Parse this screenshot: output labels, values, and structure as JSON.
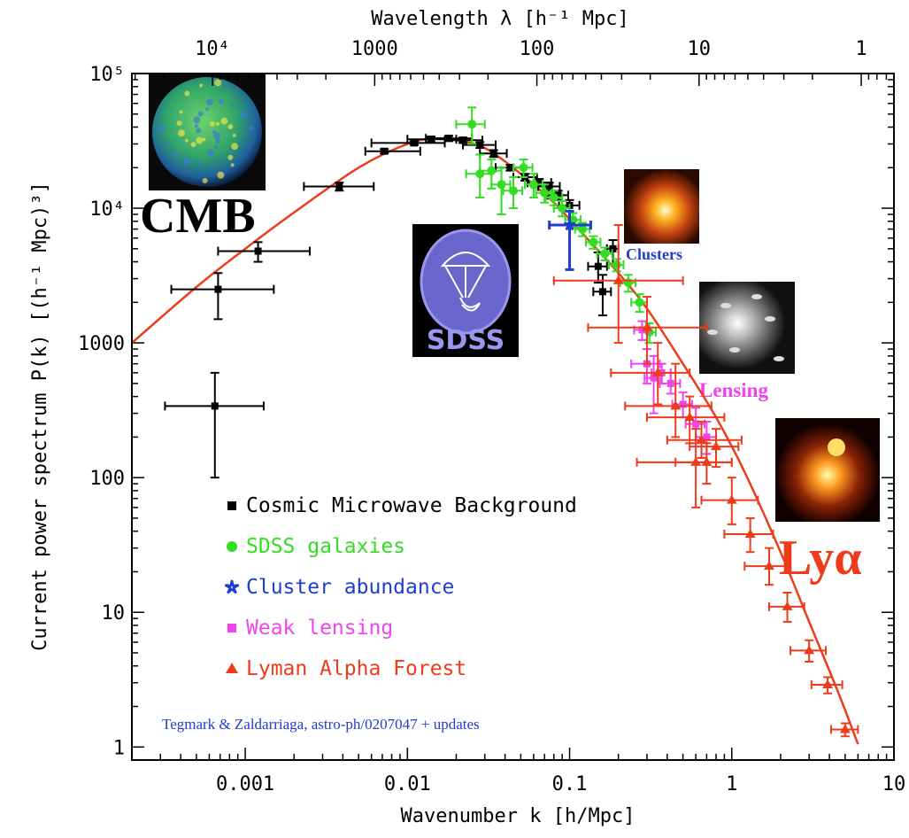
{
  "colors": {
    "cmb": "#000000",
    "sdss": "#33dd22",
    "clusters": "#1e3ed0",
    "lensing": "#ee44ee",
    "lya": "#ee3b1b",
    "model": "#ee3b1b"
  },
  "icons": [
    "square-marker-icon",
    "circle-marker-icon",
    "star-marker-icon",
    "square-marker-icon",
    "triangle-marker-icon"
  ],
  "photos": {
    "cmb": {
      "label": "CMB",
      "icon": "cmb-sky-map-photo"
    },
    "sdss": {
      "label": "SDSS",
      "icon": "sdss-telescope-logo"
    },
    "clusters": {
      "label": "Clusters",
      "icon": "galaxy-cluster-photo"
    },
    "lensing": {
      "label": "Lensing",
      "icon": "gravitational-lensing-photo"
    },
    "lya": {
      "label": "Lyα",
      "icon": "lyman-alpha-quasar-photo"
    }
  },
  "citation": "Tegmark & Zaldarriaga, astro-ph/0207047 + updates",
  "chart_data": {
    "type": "scatter",
    "xlabel": "Wavenumber k [h/Mpc]",
    "ylabel": "Current power spectrum P(k) [(h⁻¹ Mpc)³]",
    "top_xlabel": "Wavelength λ [h⁻¹ Mpc]",
    "xscale": "log",
    "yscale": "log",
    "xlim": [
      0.0002,
      10
    ],
    "ylim": [
      0.8,
      100000
    ],
    "x_ticks": [
      {
        "value": 0.001,
        "label": "0.001"
      },
      {
        "value": 0.01,
        "label": "0.01"
      },
      {
        "value": 0.1,
        "label": "0.1"
      },
      {
        "value": 1,
        "label": "1"
      },
      {
        "value": 10,
        "label": "10"
      }
    ],
    "y_ticks": [
      {
        "value": 1,
        "label": "1"
      },
      {
        "value": 10,
        "label": "10"
      },
      {
        "value": 100,
        "label": "100"
      },
      {
        "value": 1000,
        "label": "1000"
      },
      {
        "value": 10000,
        "label": "10⁴"
      },
      {
        "value": 100000,
        "label": "10⁵"
      }
    ],
    "top_ticks": [
      {
        "value": 0.000628,
        "label": "10⁴"
      },
      {
        "value": 0.00628,
        "label": "1000"
      },
      {
        "value": 0.0628,
        "label": "100"
      },
      {
        "value": 0.628,
        "label": "10"
      },
      {
        "value": 6.28,
        "label": "1"
      }
    ],
    "legend_position": "lower-left",
    "series": [
      {
        "name": "Cosmic Microwave Background",
        "marker": "square",
        "color": "#000000",
        "points": [
          {
            "x": 0.00065,
            "y": 340,
            "xlo": 0.00032,
            "xhi": 0.0013,
            "ylo": 100,
            "yhi": 600
          },
          {
            "x": 0.00068,
            "y": 2500,
            "xlo": 0.00035,
            "xhi": 0.0015,
            "ylo": 1500,
            "yhi": 3300
          },
          {
            "x": 0.0012,
            "y": 4800,
            "xlo": 0.00068,
            "xhi": 0.0025,
            "ylo": 4000,
            "yhi": 5600
          },
          {
            "x": 0.0038,
            "y": 14500,
            "xlo": 0.0023,
            "xhi": 0.0062,
            "ylo": 13500,
            "yhi": 15500
          },
          {
            "x": 0.0072,
            "y": 26500,
            "xlo": 0.0055,
            "xhi": 0.012,
            "ylo": 25500,
            "yhi": 27500
          },
          {
            "x": 0.011,
            "y": 30500,
            "xlo": 0.006,
            "xhi": 0.017,
            "ylo": 29500,
            "yhi": 31500
          },
          {
            "x": 0.014,
            "y": 32500,
            "xlo": 0.01,
            "xhi": 0.02,
            "ylo": 31000,
            "yhi": 34000
          },
          {
            "x": 0.018,
            "y": 33000,
            "xlo": 0.013,
            "xhi": 0.025,
            "ylo": 31500,
            "yhi": 34500
          },
          {
            "x": 0.022,
            "y": 32000,
            "xlo": 0.017,
            "xhi": 0.029,
            "ylo": 30500,
            "yhi": 33500
          },
          {
            "x": 0.028,
            "y": 29500,
            "xlo": 0.022,
            "xhi": 0.035,
            "ylo": 28000,
            "yhi": 31000
          },
          {
            "x": 0.034,
            "y": 25500,
            "xlo": 0.028,
            "xhi": 0.041,
            "ylo": 24000,
            "yhi": 27000
          },
          {
            "x": 0.043,
            "y": 20000,
            "xlo": 0.035,
            "xhi": 0.052,
            "ylo": 19000,
            "yhi": 21000
          },
          {
            "x": 0.053,
            "y": 17000,
            "xlo": 0.045,
            "xhi": 0.063,
            "ylo": 16000,
            "yhi": 18000
          },
          {
            "x": 0.065,
            "y": 15500,
            "xlo": 0.055,
            "xhi": 0.077,
            "ylo": 14500,
            "yhi": 16500
          },
          {
            "x": 0.075,
            "y": 14500,
            "xlo": 0.064,
            "xhi": 0.087,
            "ylo": 13500,
            "yhi": 15500
          },
          {
            "x": 0.085,
            "y": 12500,
            "xlo": 0.073,
            "xhi": 0.098,
            "ylo": 11500,
            "yhi": 13500
          },
          {
            "x": 0.1,
            "y": 10500,
            "xlo": 0.086,
            "xhi": 0.115,
            "ylo": 9500,
            "yhi": 11500
          },
          {
            "x": 0.15,
            "y": 3700,
            "xlo": 0.13,
            "xhi": 0.17,
            "ylo": 2800,
            "yhi": 4700
          },
          {
            "x": 0.16,
            "y": 2400,
            "xlo": 0.14,
            "xhi": 0.18,
            "ylo": 1600,
            "yhi": 3200
          },
          {
            "x": 0.185,
            "y": 5000,
            "xlo": 0.17,
            "xhi": 0.2,
            "ylo": 3800,
            "yhi": 5800
          }
        ]
      },
      {
        "name": "SDSS galaxies",
        "marker": "circle",
        "color": "#33dd22",
        "points": [
          {
            "x": 0.025,
            "y": 42000,
            "xlo": 0.02,
            "xhi": 0.03,
            "ylo": 30000,
            "yhi": 56000
          },
          {
            "x": 0.028,
            "y": 18000,
            "xlo": 0.023,
            "xhi": 0.033,
            "ylo": 12000,
            "yhi": 25000
          },
          {
            "x": 0.033,
            "y": 19000,
            "xlo": 0.028,
            "xhi": 0.038,
            "ylo": 14000,
            "yhi": 23000
          },
          {
            "x": 0.038,
            "y": 15000,
            "xlo": 0.033,
            "xhi": 0.043,
            "ylo": 9000,
            "yhi": 20000
          },
          {
            "x": 0.045,
            "y": 13500,
            "xlo": 0.039,
            "xhi": 0.051,
            "ylo": 10000,
            "yhi": 17000
          },
          {
            "x": 0.052,
            "y": 20000,
            "xlo": 0.045,
            "xhi": 0.059,
            "ylo": 17000,
            "yhi": 23000
          },
          {
            "x": 0.06,
            "y": 15000,
            "xlo": 0.053,
            "xhi": 0.068,
            "ylo": 12000,
            "yhi": 18000
          },
          {
            "x": 0.07,
            "y": 13000,
            "xlo": 0.062,
            "xhi": 0.078,
            "ylo": 11000,
            "yhi": 15000
          },
          {
            "x": 0.08,
            "y": 12000,
            "xlo": 0.071,
            "xhi": 0.09,
            "ylo": 10500,
            "yhi": 13500
          },
          {
            "x": 0.09,
            "y": 10000,
            "xlo": 0.08,
            "xhi": 0.1,
            "ylo": 8700,
            "yhi": 11300
          },
          {
            "x": 0.105,
            "y": 8200,
            "xlo": 0.094,
            "xhi": 0.117,
            "ylo": 7200,
            "yhi": 9200
          },
          {
            "x": 0.12,
            "y": 7000,
            "xlo": 0.108,
            "xhi": 0.133,
            "ylo": 6200,
            "yhi": 7800
          },
          {
            "x": 0.14,
            "y": 5600,
            "xlo": 0.126,
            "xhi": 0.155,
            "ylo": 5000,
            "yhi": 6200
          },
          {
            "x": 0.165,
            "y": 4600,
            "xlo": 0.148,
            "xhi": 0.183,
            "ylo": 4100,
            "yhi": 5100
          },
          {
            "x": 0.195,
            "y": 3800,
            "xlo": 0.175,
            "xhi": 0.215,
            "ylo": 3400,
            "yhi": 4200
          },
          {
            "x": 0.23,
            "y": 2800,
            "xlo": 0.205,
            "xhi": 0.255,
            "ylo": 2400,
            "yhi": 3200
          },
          {
            "x": 0.27,
            "y": 2000,
            "xlo": 0.24,
            "xhi": 0.3,
            "ylo": 1700,
            "yhi": 2300
          },
          {
            "x": 0.31,
            "y": 1200,
            "xlo": 0.28,
            "xhi": 0.34,
            "ylo": 1000,
            "yhi": 1400
          }
        ]
      },
      {
        "name": "Cluster abundance",
        "marker": "star",
        "color": "#1e3ed0",
        "points": [
          {
            "x": 0.1,
            "y": 7500,
            "xlo": 0.075,
            "xhi": 0.135,
            "ylo": 3500,
            "yhi": 9500
          }
        ]
      },
      {
        "name": "Weak lensing",
        "marker": "square",
        "color": "#ee44ee",
        "points": [
          {
            "x": 0.28,
            "y": 1250,
            "xlo": 0.25,
            "xhi": 0.31,
            "ylo": 1050,
            "yhi": 1450
          },
          {
            "x": 0.3,
            "y": 700,
            "xlo": 0.24,
            "xhi": 0.36,
            "ylo": 500,
            "yhi": 900
          },
          {
            "x": 0.33,
            "y": 550,
            "xlo": 0.29,
            "xhi": 0.37,
            "ylo": 300,
            "yhi": 800
          },
          {
            "x": 0.37,
            "y": 600,
            "xlo": 0.32,
            "xhi": 0.42,
            "ylo": 500,
            "yhi": 700
          },
          {
            "x": 0.42,
            "y": 500,
            "xlo": 0.36,
            "xhi": 0.48,
            "ylo": 420,
            "yhi": 600
          },
          {
            "x": 0.5,
            "y": 350,
            "xlo": 0.43,
            "xhi": 0.57,
            "ylo": 280,
            "yhi": 430
          },
          {
            "x": 0.6,
            "y": 250,
            "xlo": 0.52,
            "xhi": 0.68,
            "ylo": 180,
            "yhi": 330
          },
          {
            "x": 0.7,
            "y": 200,
            "xlo": 0.6,
            "xhi": 0.8,
            "ylo": 150,
            "yhi": 260
          }
        ]
      },
      {
        "name": "Lyman Alpha Forest",
        "marker": "triangle",
        "color": "#ee3b1b",
        "points": [
          {
            "x": 0.2,
            "y": 2900,
            "xlo": 0.08,
            "xhi": 0.5,
            "ylo": 1000,
            "yhi": 7500
          },
          {
            "x": 0.3,
            "y": 1300,
            "xlo": 0.13,
            "xhi": 0.7,
            "ylo": 700,
            "yhi": 2200
          },
          {
            "x": 0.35,
            "y": 600,
            "xlo": 0.18,
            "xhi": 0.55,
            "ylo": 350,
            "yhi": 1000
          },
          {
            "x": 0.45,
            "y": 340,
            "xlo": 0.22,
            "xhi": 0.75,
            "ylo": 200,
            "yhi": 700
          },
          {
            "x": 0.55,
            "y": 280,
            "xlo": 0.3,
            "xhi": 0.9,
            "ylo": 180,
            "yhi": 400
          },
          {
            "x": 0.6,
            "y": 130,
            "xlo": 0.26,
            "xhi": 1.0,
            "ylo": 60,
            "yhi": 230
          },
          {
            "x": 0.65,
            "y": 190,
            "xlo": 0.4,
            "xhi": 1.15,
            "ylo": 140,
            "yhi": 260
          },
          {
            "x": 0.8,
            "y": 170,
            "xlo": 0.55,
            "xhi": 1.1,
            "ylo": 120,
            "yhi": 230
          },
          {
            "x": 0.7,
            "y": 130,
            "xlo": 0.45,
            "xhi": 1.0,
            "ylo": 90,
            "yhi": 180
          },
          {
            "x": 1.0,
            "y": 68,
            "xlo": 0.65,
            "xhi": 1.45,
            "ylo": 45,
            "yhi": 100
          },
          {
            "x": 1.3,
            "y": 38,
            "xlo": 0.9,
            "xhi": 1.8,
            "ylo": 28,
            "yhi": 50
          },
          {
            "x": 1.7,
            "y": 22,
            "xlo": 1.2,
            "xhi": 2.3,
            "ylo": 16,
            "yhi": 30
          },
          {
            "x": 2.2,
            "y": 11,
            "xlo": 1.7,
            "xhi": 2.8,
            "ylo": 8.5,
            "yhi": 14
          },
          {
            "x": 3.0,
            "y": 5.2,
            "xlo": 2.3,
            "xhi": 3.8,
            "ylo": 4.3,
            "yhi": 6.2
          },
          {
            "x": 3.9,
            "y": 2.9,
            "xlo": 3.1,
            "xhi": 4.8,
            "ylo": 2.5,
            "yhi": 3.3
          },
          {
            "x": 5.0,
            "y": 1.35,
            "xlo": 4.1,
            "xhi": 6.0,
            "ylo": 1.2,
            "yhi": 1.5
          }
        ]
      }
    ],
    "model": {
      "name": "",
      "x": [
        0.0002,
        0.0005,
        0.001,
        0.002,
        0.005,
        0.01,
        0.015,
        0.02,
        0.03,
        0.05,
        0.08,
        0.12,
        0.2,
        0.3,
        0.5,
        0.8,
        1.2,
        2.0,
        3.0,
        4.5,
        6.0
      ],
      "y": [
        1000,
        2600,
        5000,
        9300,
        20000,
        30000,
        33000,
        32000,
        28000,
        18000,
        11000,
        6500,
        3300,
        1800,
        700,
        280,
        110,
        28,
        8.5,
        2.6,
        1.05
      ]
    }
  }
}
